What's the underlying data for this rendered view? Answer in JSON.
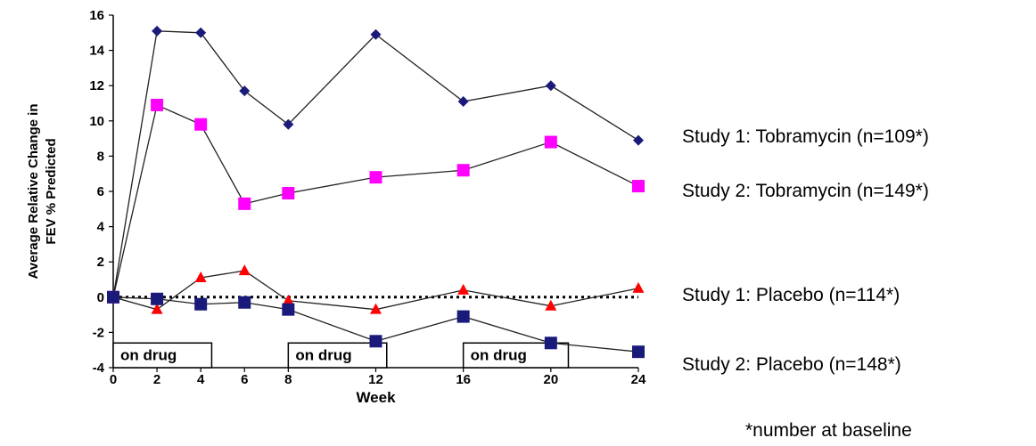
{
  "chart_data": {
    "type": "line",
    "xlabel": "Week",
    "ylabel_line1": "Average Relative Change in",
    "ylabel_line2": "FEV      % Predicted",
    "x_ticks": [
      0,
      2,
      4,
      6,
      8,
      12,
      16,
      20,
      24
    ],
    "y_ticks": [
      -4,
      -2,
      0,
      2,
      4,
      6,
      8,
      10,
      12,
      14,
      16
    ],
    "xlim": [
      0,
      24
    ],
    "ylim": [
      -4,
      16
    ],
    "series": [
      {
        "name": "Study 1: Tobramycin (n=109*)",
        "marker": "diamond",
        "color": "#1a1a7a",
        "x": [
          0,
          2,
          4,
          6,
          8,
          12,
          16,
          20,
          24
        ],
        "y": [
          0,
          15.1,
          15.0,
          11.7,
          9.8,
          14.9,
          11.1,
          12.0,
          8.9
        ]
      },
      {
        "name": "Study 2: Tobramycin (n=149*)",
        "marker": "square",
        "color": "#ff00ff",
        "x": [
          0,
          2,
          4,
          6,
          8,
          12,
          16,
          20,
          24
        ],
        "y": [
          0,
          10.9,
          9.8,
          5.3,
          5.9,
          6.8,
          7.2,
          8.8,
          6.3
        ]
      },
      {
        "name": "Study 1:  Placebo (n=114*)",
        "marker": "triangle",
        "color": "#ff0000",
        "x": [
          0,
          2,
          4,
          6,
          8,
          12,
          16,
          20,
          24
        ],
        "y": [
          0,
          -0.7,
          1.1,
          1.5,
          -0.2,
          -0.7,
          0.4,
          -0.5,
          0.5
        ]
      },
      {
        "name": "Study 2: Placebo (n=148*)",
        "marker": "square",
        "color": "#1a1a7a",
        "x": [
          0,
          2,
          4,
          6,
          8,
          12,
          16,
          20,
          24
        ],
        "y": [
          0,
          -0.1,
          -0.4,
          -0.3,
          -0.7,
          -2.5,
          -1.1,
          -2.6,
          -3.1
        ]
      }
    ],
    "reference_line": {
      "style": "dotted",
      "y": 0
    },
    "on_drug_boxes": [
      {
        "label": "on drug",
        "x_start": 0,
        "x_end": 4.5
      },
      {
        "label": "on drug",
        "x_start": 8,
        "x_end": 12.5
      },
      {
        "label": "on drug",
        "x_start": 16,
        "x_end": 20.8
      }
    ],
    "legend_placement": "right",
    "footnote": "*number at baseline",
    "grid": false
  }
}
